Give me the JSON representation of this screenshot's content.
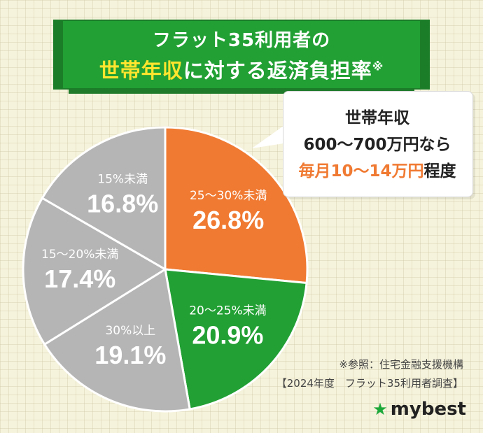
{
  "title": {
    "line1": "フラット35利用者の",
    "line2_highlight": "世帯年収",
    "line2_rest": "に対する返済負担率",
    "note_mark": "※"
  },
  "chart_data": {
    "type": "pie",
    "slices": [
      {
        "label": "25〜30%未満",
        "value": 26.8,
        "display": "26.8%",
        "color": "#f07a32"
      },
      {
        "label": "20〜25%未満",
        "value": 20.9,
        "display": "20.9%",
        "color": "#22a034"
      },
      {
        "label": "30%以上",
        "value": 19.1,
        "display": "19.1%",
        "color": "#b5b5b5"
      },
      {
        "label": "15〜20%未満",
        "value": 17.4,
        "display": "17.4%",
        "color": "#b5b5b5"
      },
      {
        "label": "15%未満",
        "value": 16.8,
        "display": "16.8%",
        "color": "#b5b5b5"
      }
    ],
    "start": "12 o'clock",
    "direction": "clockwise"
  },
  "callout": {
    "line1": "世帯年収",
    "line2": "600〜700万円なら",
    "line3_highlight": "毎月10〜14万円",
    "line3_rest": "程度"
  },
  "source": {
    "line1": "※参照：住宅金融支援機構",
    "line2": "【2024年度　フラット35利用者調査】"
  },
  "logo": {
    "icon": "star-icon",
    "text": "mybest"
  }
}
